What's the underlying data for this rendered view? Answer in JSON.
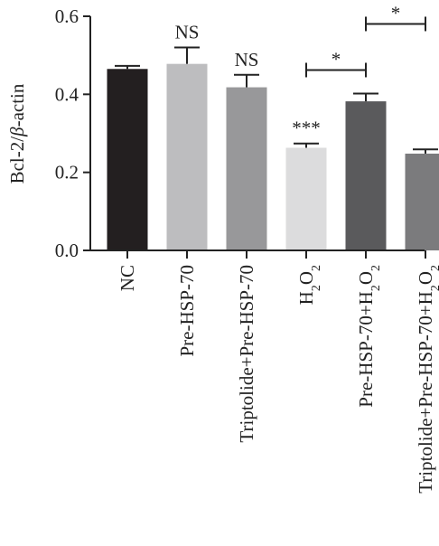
{
  "chart_data": {
    "type": "bar",
    "ylabel_main": "Bcl-2/",
    "ylabel_italic": "β",
    "ylabel_tail": "-actin",
    "ylim": [
      0,
      0.6
    ],
    "yticks": [
      {
        "value": 0,
        "label": "0.0"
      },
      {
        "value": 0.2,
        "label": "0.2"
      },
      {
        "value": 0.4,
        "label": "0.4"
      },
      {
        "value": 0.6,
        "label": "0.6"
      }
    ],
    "categories": [
      {
        "label": "NC",
        "value": 0.465,
        "error": 0.008,
        "color": "#231f20",
        "sig": ""
      },
      {
        "label": "Pre-HSP-70",
        "value": 0.478,
        "error": 0.042,
        "color": "#bdbdbf",
        "sig": "NS"
      },
      {
        "label": "Triptolide+Pre-HSP-70",
        "value": 0.418,
        "error": 0.032,
        "color": "#98989a",
        "sig": "NS"
      },
      {
        "label": "H₂O₂",
        "value": 0.263,
        "error": 0.011,
        "color": "#dcdcdd",
        "sig": "***"
      },
      {
        "label": "Pre-HSP-70+H₂O₂",
        "value": 0.382,
        "error": 0.02,
        "color": "#5a5a5c",
        "sig": ""
      },
      {
        "label": "Triptolide+Pre-HSP-70+H₂O₂",
        "value": 0.248,
        "error": 0.011,
        "color": "#7b7b7d",
        "sig": ""
      }
    ],
    "brackets": [
      {
        "from": 3,
        "to": 4,
        "label": "*"
      },
      {
        "from": 4,
        "to": 5,
        "label": "*"
      }
    ],
    "grid": false,
    "legend": "none"
  }
}
